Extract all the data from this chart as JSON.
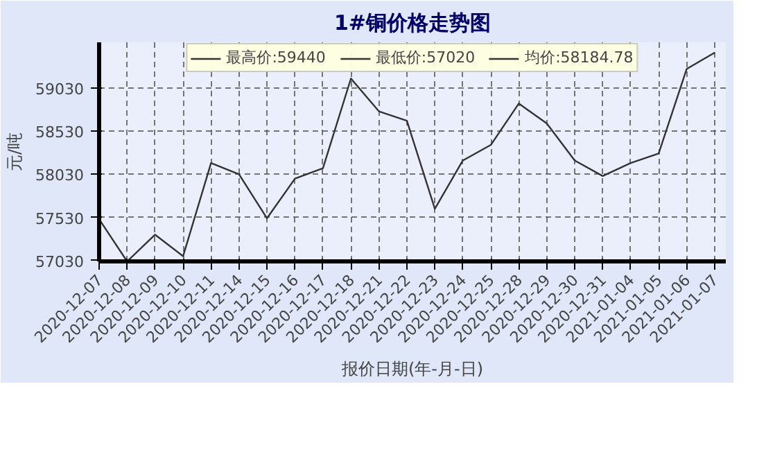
{
  "chart_data": {
    "type": "line",
    "title": "1#铜价格走势图",
    "xlabel": "报价日期(年-月-日)",
    "ylabel": "元/吨",
    "categories": [
      "2020-12-07",
      "2020-12-08",
      "2020-12-09",
      "2020-12-10",
      "2020-12-11",
      "2020-12-14",
      "2020-12-15",
      "2020-12-16",
      "2020-12-17",
      "2020-12-18",
      "2020-12-21",
      "2020-12-22",
      "2020-12-23",
      "2020-12-24",
      "2020-12-25",
      "2020-12-28",
      "2020-12-29",
      "2020-12-30",
      "2020-12-31",
      "2021-01-04",
      "2021-01-05",
      "2021-01-06",
      "2021-01-07"
    ],
    "series": [
      {
        "color": "#333333",
        "values": [
          57510,
          57020,
          57330,
          57080,
          58160,
          58030,
          57520,
          57980,
          58100,
          59140,
          58760,
          58650,
          57630,
          58190,
          58370,
          58850,
          58620,
          58190,
          58010,
          58160,
          58270,
          59250,
          59440
        ]
      }
    ],
    "annotations": [
      "最高价:59440",
      "最低价:57020",
      "均价:58184.78"
    ],
    "ylim": [
      57020,
      59560
    ],
    "yticks": [
      57030,
      57530,
      58030,
      58530,
      59030
    ],
    "grid": true,
    "marker": "none",
    "line_style": "solid"
  }
}
